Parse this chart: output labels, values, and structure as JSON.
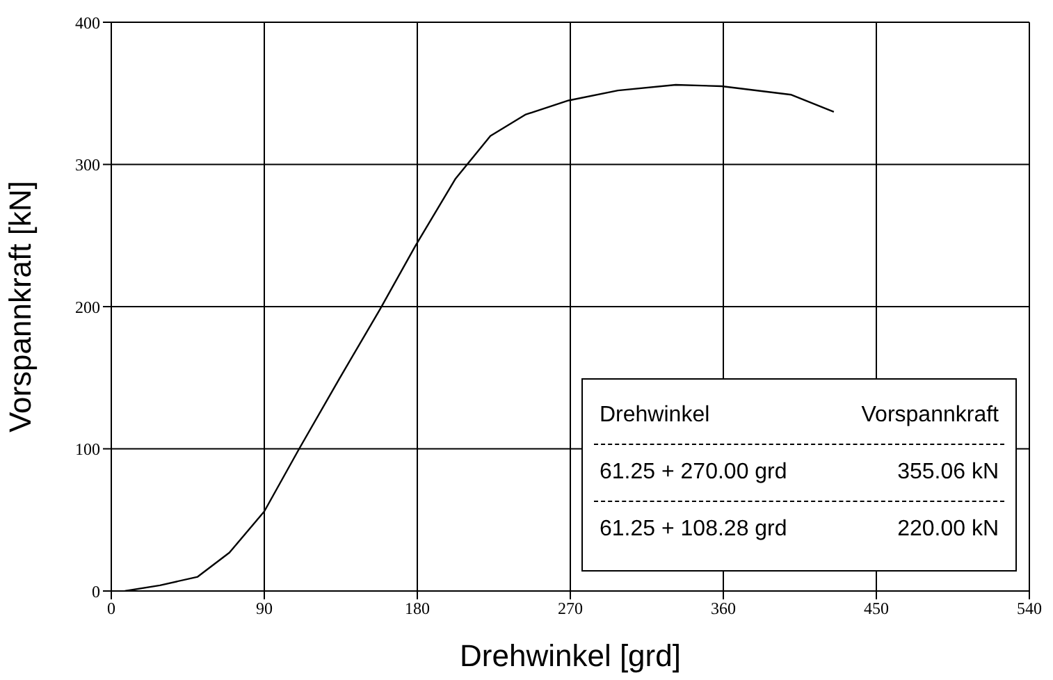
{
  "chart_data": {
    "type": "line",
    "xlabel": "Drehwinkel [grd]",
    "ylabel": "Vorspannkraft [kN]",
    "series": [
      {
        "color": "#000000",
        "x": [
          8,
          28.6,
          50.8,
          69.5,
          90,
          110.5,
          134,
          158,
          179,
          202.5,
          223,
          243.5,
          269,
          298,
          332,
          359,
          400,
          425
        ],
        "values": [
          0,
          4,
          10,
          27,
          56,
          100,
          149,
          198,
          243,
          290,
          320,
          335,
          345,
          352,
          356,
          355,
          349,
          337
        ]
      }
    ],
    "xlim": [
      0,
      540
    ],
    "xticks": [
      0,
      90,
      180,
      270,
      360,
      450,
      540
    ],
    "ylim": [
      0,
      400
    ],
    "yticks": [
      0,
      100,
      200,
      300,
      400
    ],
    "grid": true,
    "marker": "none",
    "line_style": "solid",
    "annotations": [
      "Drehwinkel",
      "Vorspannkraft",
      "61.25 + 270.00 grd",
      "355.06 kN",
      "61.25 + 108.28 grd",
      "220.00 kN"
    ]
  }
}
